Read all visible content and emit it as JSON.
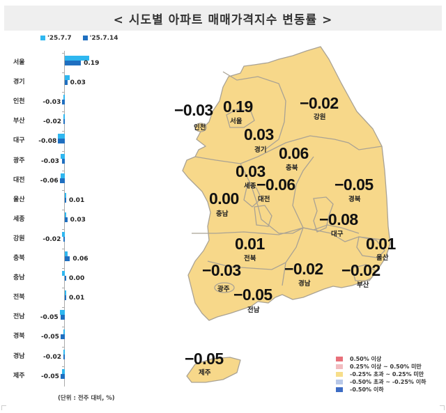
{
  "title": "< 시도별 아파트 매매가격지수 변동률 >",
  "legend": {
    "series": [
      {
        "label": "'25.7.7",
        "color": "#2fb7f0"
      },
      {
        "label": "'25.7.14",
        "color": "#1f6fc0"
      }
    ]
  },
  "unit_note": "(단위 : 전주 대비, %)",
  "map_legend": [
    {
      "label": "0.50% 이상",
      "color": "#e8707a"
    },
    {
      "label": "0.25% 이상 ~ 0.50% 미만",
      "color": "#f2bcc0"
    },
    {
      "label": "-0.25% 초과 ~ 0.25% 미만",
      "color": "#f7de8a"
    },
    {
      "label": "-0.50% 초과 ~ -0.25% 이하",
      "color": "#b8c8e8"
    },
    {
      "label": "-0.50% 이하",
      "color": "#3d6cc4"
    }
  ],
  "map_regions": [
    {
      "name": "인천",
      "value": "-0.03"
    },
    {
      "name": "서울",
      "value": "0.19"
    },
    {
      "name": "강원",
      "value": "-0.02"
    },
    {
      "name": "경기",
      "value": "0.03"
    },
    {
      "name": "충북",
      "value": "0.06"
    },
    {
      "name": "세종",
      "value": "0.03"
    },
    {
      "name": "대전",
      "value": "-0.06"
    },
    {
      "name": "충남",
      "value": "0.00"
    },
    {
      "name": "경북",
      "value": "-0.05"
    },
    {
      "name": "대구",
      "value": "-0.08"
    },
    {
      "name": "전북",
      "value": "0.01"
    },
    {
      "name": "울산",
      "value": "0.01"
    },
    {
      "name": "광주",
      "value": "-0.03"
    },
    {
      "name": "경남",
      "value": "-0.02"
    },
    {
      "name": "부산",
      "value": "-0.02"
    },
    {
      "name": "전남",
      "value": "-0.05"
    },
    {
      "name": "제주",
      "value": "-0.05"
    }
  ],
  "chart_data": {
    "type": "bar",
    "orientation": "horizontal",
    "title": "< 시도별 아파트 매매가격지수 변동률 >",
    "xlabel": "",
    "ylabel": "",
    "unit": "(단위 : 전주 대비, %)",
    "legend_position": "top-left",
    "grid": false,
    "categories": [
      "서울",
      "경기",
      "인천",
      "부산",
      "대구",
      "광주",
      "대전",
      "울산",
      "세종",
      "강원",
      "충북",
      "충남",
      "전북",
      "전남",
      "경북",
      "경남",
      "제주"
    ],
    "series": [
      {
        "name": "'25.7.7",
        "values": [
          0.29,
          0.06,
          -0.02,
          -0.01,
          -0.08,
          -0.05,
          -0.05,
          0.0,
          0.0,
          -0.03,
          0.03,
          -0.03,
          0.0,
          -0.06,
          -0.01,
          -0.01,
          -0.03
        ]
      },
      {
        "name": "'25.7.14",
        "values": [
          0.19,
          0.03,
          -0.03,
          -0.02,
          -0.08,
          -0.03,
          -0.06,
          0.01,
          0.03,
          -0.02,
          0.06,
          0.0,
          0.01,
          -0.05,
          -0.05,
          -0.02,
          -0.05
        ]
      }
    ],
    "data_labels": [
      "0.19",
      "0.03",
      "-0.03",
      "-0.02",
      "-0.08",
      "-0.03",
      "-0.06",
      "0.01",
      "0.03",
      "-0.02",
      "0.06",
      "0.00",
      "0.01",
      "-0.05",
      "-0.05",
      "-0.02",
      "-0.05"
    ]
  }
}
